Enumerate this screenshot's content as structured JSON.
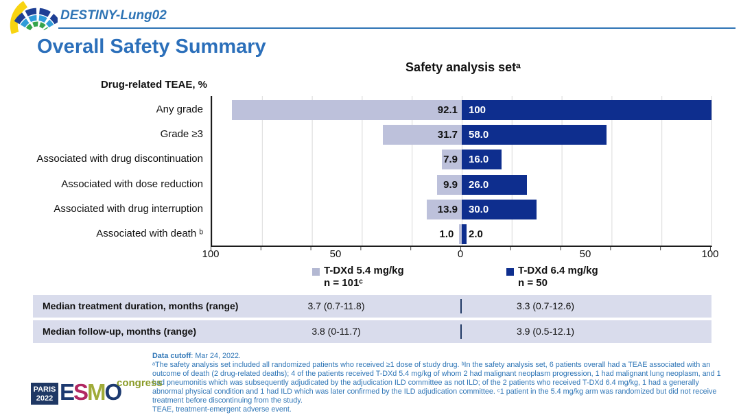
{
  "header": {
    "study": "DESTINY-Lung02",
    "title": "Overall Safety Summary"
  },
  "chart_data": {
    "type": "bar",
    "variant": "diverging-horizontal",
    "title": "Safety analysis setᵃ",
    "axis_caption": "Drug-related TEAE, %",
    "categories": [
      "Any grade",
      "Grade ≥3",
      "Associated with drug discontinuation",
      "Associated with dose reduction",
      "Associated with drug interruption",
      "Associated with death ᵇ"
    ],
    "series": [
      {
        "name": "T-DXd 5.4 mg/kg",
        "n_label": "n = 101ᶜ",
        "color": "#bdc1db",
        "values": [
          92.1,
          31.7,
          7.9,
          9.9,
          13.9,
          1.0
        ],
        "labels": [
          "92.1",
          "31.7",
          "7.9",
          "9.9",
          "13.9",
          "1.0"
        ]
      },
      {
        "name": "T-DXd 6.4 mg/kg",
        "n_label": "n = 50",
        "color": "#0e2e8e",
        "values": [
          100,
          58.0,
          16.0,
          26.0,
          30.0,
          2.0
        ],
        "labels": [
          "100",
          "58.0",
          "16.0",
          "26.0",
          "30.0",
          "2.0"
        ]
      }
    ],
    "xlim": [
      0,
      100
    ],
    "x_ticks": [
      "100",
      "50",
      "0",
      "50",
      "100"
    ],
    "gridline_step": 20,
    "grid": true,
    "legend_position": "bottom"
  },
  "table": {
    "rows": [
      {
        "label": "Median treatment duration, months (range)",
        "v1": "3.7 (0.7-11.8)",
        "v2": "3.3 (0.7-12.6)"
      },
      {
        "label": "Median follow-up, months (range)",
        "v1": "3.8 (0-11.7)",
        "v2": "3.9 (0.5-12.1)"
      }
    ]
  },
  "footer": {
    "cutoff_label": "Data cutoff",
    "cutoff_rest": ": Mar 24, 2022.",
    "notes": "ᵃThe safety analysis set included all randomized patients who received ≥1 dose of study drug. ᵇIn the safety analysis set, 6 patients overall had a TEAE associated with an outcome of death (2 drug-related deaths); 4 of the patients received T-DXd 5.4 mg/kg of whom 2 had malignant neoplasm progression, 1 had malignant lung neoplasm, and 1 had pneumonitis which was subsequently adjudicated by the adjudication ILD committee as not ILD; of the 2 patients who received T-DXd 6.4 mg/kg, 1 had a generally abnormal physical condition and 1 had ILD which was later confirmed by the ILD adjudication committee. ᶜ1 patient in the 5.4 mg/kg arm was randomized but did not receive treatment before discontinuing from the study.",
    "abbrev": "TEAE, treatment-emergent adverse event."
  },
  "logos": {
    "congress_city": "PARIS",
    "congress_year": "2022",
    "esmo_letters": [
      "E",
      "S",
      "M",
      "O"
    ],
    "esmo_colors": [
      "#1d3a70",
      "#b12862",
      "#a0ab39",
      "#1d3a70"
    ],
    "congress_word": "congress"
  },
  "colors": {
    "accent_blue": "#2e74b5",
    "title_blue": "#2b6fba",
    "bar_54": "#bdc1db",
    "bar_64": "#0e2e8e",
    "table_bg": "#d9dcec",
    "gridline": "#d9d9d9"
  }
}
